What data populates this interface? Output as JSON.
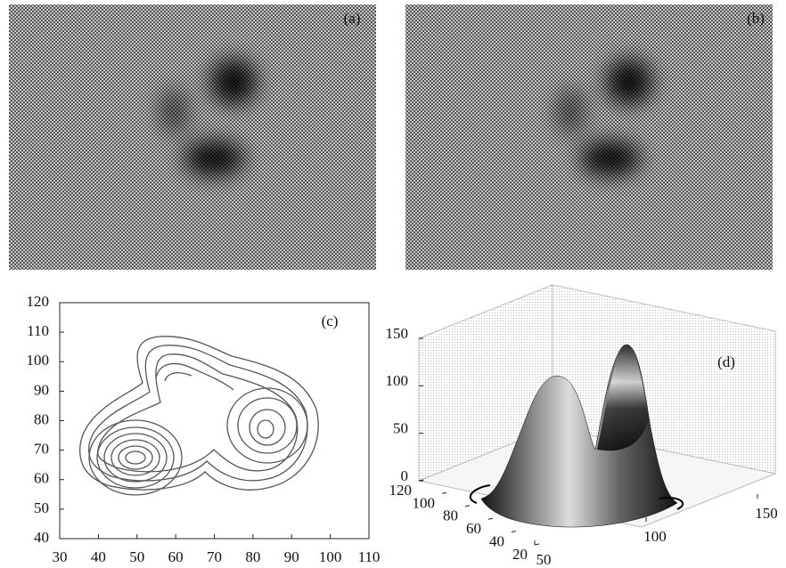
{
  "chart_data": [
    {
      "type": "image",
      "label": "(a)"
    },
    {
      "type": "image",
      "label": "(b)"
    },
    {
      "type": "contour",
      "label": "(c)",
      "xlim": [
        30,
        110
      ],
      "ylim": [
        40,
        120
      ],
      "xticks": [
        30,
        40,
        50,
        60,
        70,
        80,
        90,
        100,
        110
      ],
      "yticks": [
        40,
        50,
        60,
        70,
        80,
        90,
        100,
        110,
        120
      ]
    },
    {
      "type": "surface3d",
      "label": "(d)",
      "xlim": [
        50,
        150
      ],
      "ylim": [
        20,
        120
      ],
      "zlim": [
        0,
        150
      ],
      "xticks": [
        50,
        100,
        150
      ],
      "yticks": [
        20,
        40,
        60,
        80,
        100,
        120
      ],
      "zticks": [
        0,
        50,
        100,
        150
      ]
    }
  ]
}
